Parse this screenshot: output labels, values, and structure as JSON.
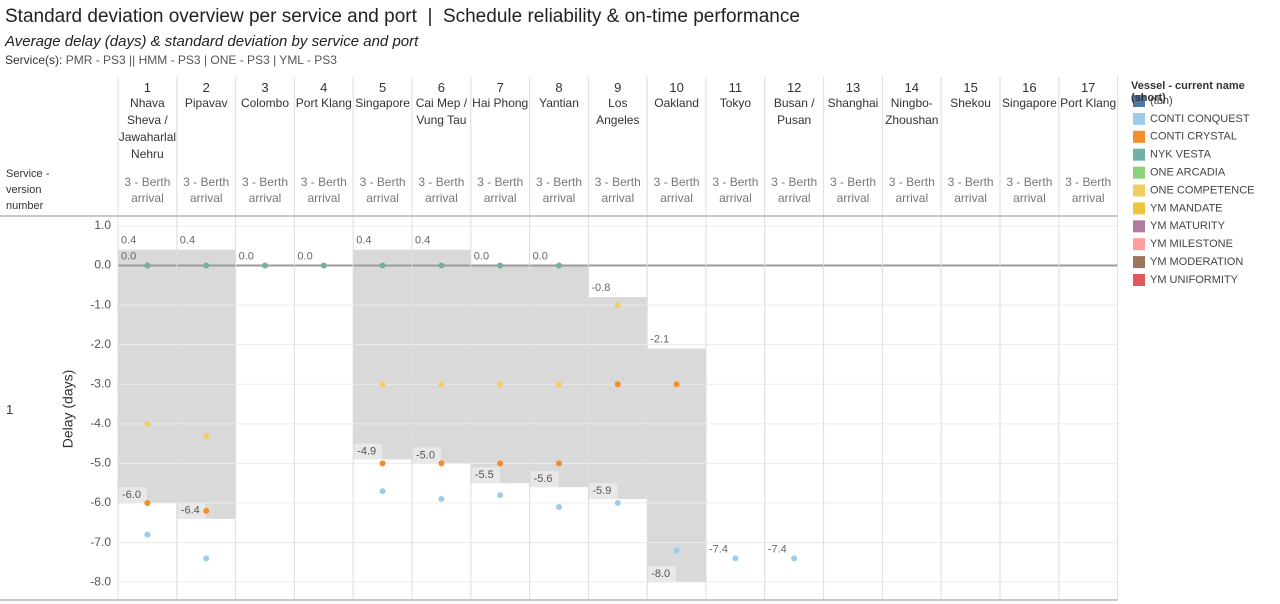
{
  "chart_data": {
    "type": "band",
    "title": "Standard deviation overview per service and port  |  Schedule reliability & on-time performance",
    "subtitle": "Average delay (days) & standard deviation by service and port",
    "services_label": "Service(s):",
    "services": "PMR - PS3 || HMM - PS3 | ONE - PS3 | YML - PS3",
    "row_header": "Service - version number",
    "rows": [
      1
    ],
    "column_numbers": [
      1,
      2,
      3,
      4,
      5,
      6,
      7,
      8,
      9,
      10,
      11,
      12,
      13,
      14,
      15,
      16,
      17
    ],
    "categories": [
      "Nhava Sheva / Jawaharlal Nehru",
      "Pipavav",
      "Colombo",
      "Port Klang",
      "Singapore",
      "Cai Mep / Vung Tau",
      "Hai Phong",
      "Yantian",
      "Los Angeles",
      "Oakland",
      "Tokyo",
      "Busan / Pusan",
      "Shanghai",
      "Ningbo-Zhoushan",
      "Shekou",
      "Singapore",
      "Port Klang"
    ],
    "column_events": [
      "3 - Berth arrival",
      "3 - Berth arrival",
      "3 - Berth arrival",
      "3 - Berth arrival",
      "3 - Berth arrival",
      "3 - Berth arrival",
      "3 - Berth arrival",
      "3 - Berth arrival",
      "3 - Berth arrival",
      "3 - Berth arrival",
      "3 - Berth arrival",
      "3 - Berth arrival",
      "3 - Berth arrival",
      "3 - Berth arrival",
      "3 - Berth arrival",
      "3 - Berth arrival",
      "3 - Berth arrival"
    ],
    "y_label": "Delay (days)",
    "ylim": [
      -8.4,
      1.2
    ],
    "yticks": [
      {
        "value": 1,
        "label": "1.0"
      },
      {
        "value": 0,
        "label": "0.0"
      },
      {
        "value": -1,
        "label": "-1.0"
      },
      {
        "value": -2,
        "label": "-2.0"
      },
      {
        "value": -3,
        "label": "-3.0"
      },
      {
        "value": -4,
        "label": "-4.0"
      },
      {
        "value": -5,
        "label": "-5.0"
      },
      {
        "value": -6,
        "label": "-6.0"
      },
      {
        "value": -7,
        "label": "-7.0"
      },
      {
        "value": -8,
        "label": "-8.0"
      }
    ],
    "grid": true,
    "band_color": "#d9d9d9",
    "band_upper": {
      "values": [
        0.4,
        0.4,
        0,
        0,
        0.4,
        0.4,
        0,
        0,
        -0.8,
        -2.1,
        -7.4,
        -7.4,
        null,
        null,
        null,
        null,
        null
      ],
      "value_labels": [
        "0.4",
        "0.4",
        "0.0",
        "0.0",
        "0.4",
        "0.4",
        "0.0",
        "0.0",
        "-0.8",
        "-2.1",
        "-7.4",
        "-7.4",
        null,
        null,
        null,
        null,
        null
      ]
    },
    "band_lower": {
      "values": [
        -6,
        -6.4,
        null,
        null,
        -4.9,
        -5,
        -5.5,
        -5.6,
        -5.9,
        -8,
        null,
        null,
        null,
        null,
        null,
        null,
        null
      ],
      "value_labels": [
        "-6.0",
        "-6.4",
        null,
        null,
        "-4.9",
        "-5.0",
        "-5.5",
        "-5.6",
        "-5.9",
        "-8.0",
        null,
        null,
        null,
        null,
        null,
        null,
        null
      ]
    },
    "reference": {
      "values": [
        0,
        null,
        null,
        null,
        null,
        null,
        null,
        null,
        null,
        null,
        null,
        null,
        null,
        null,
        null,
        null,
        null
      ],
      "value_labels": [
        "0.0",
        null,
        null,
        null,
        null,
        null,
        null,
        null,
        null,
        null,
        null,
        null,
        null,
        null,
        null,
        null,
        null
      ]
    },
    "legend_title": "Vessel - current name (short)",
    "series": [
      {
        "name": "(tbn)",
        "color": "#4e79a7",
        "values": [
          null,
          null,
          null,
          null,
          null,
          null,
          null,
          null,
          null,
          null,
          null,
          null,
          null,
          null,
          null,
          null,
          null
        ]
      },
      {
        "name": "CONTI CONQUEST",
        "color": "#a0cbe8",
        "values": [
          -6.8,
          -7.4,
          null,
          null,
          -5.7,
          -5.9,
          -5.8,
          -6.1,
          -6.0,
          -7.2,
          -7.4,
          -7.4,
          null,
          null,
          null,
          null,
          null
        ]
      },
      {
        "name": "CONTI CRYSTAL",
        "color": "#f28e2b",
        "values": [
          -6.0,
          -6.2,
          null,
          null,
          -5.0,
          -5.0,
          -5.0,
          -5.0,
          -3.0,
          -3.0,
          null,
          null,
          null,
          null,
          null,
          null,
          null
        ]
      },
      {
        "name": "NYK VESTA",
        "color": "#6fb1aa",
        "values": [
          0,
          0,
          0,
          0,
          0,
          0,
          0,
          0,
          null,
          null,
          null,
          null,
          null,
          null,
          null,
          null,
          null
        ]
      },
      {
        "name": "ONE ARCADIA",
        "color": "#8cd17d",
        "values": [
          null,
          null,
          null,
          null,
          null,
          null,
          null,
          null,
          null,
          null,
          null,
          null,
          null,
          null,
          null,
          null,
          null
        ]
      },
      {
        "name": "ONE COMPETENCE",
        "color": "#f1ce63",
        "values": [
          -4.0,
          -4.3,
          null,
          null,
          -3.0,
          -3.0,
          -3.0,
          -3.0,
          -1.0,
          null,
          null,
          null,
          null,
          null,
          null,
          null,
          null
        ]
      },
      {
        "name": "YM MANDATE",
        "color": "#edc43a",
        "values": [
          null,
          null,
          null,
          null,
          null,
          null,
          null,
          null,
          null,
          null,
          null,
          null,
          null,
          null,
          null,
          null,
          null
        ]
      },
      {
        "name": "YM MATURITY",
        "color": "#b07aa1",
        "values": [
          null,
          null,
          null,
          null,
          null,
          null,
          null,
          null,
          null,
          null,
          null,
          null,
          null,
          null,
          null,
          null,
          null
        ]
      },
      {
        "name": "YM MILESTONE",
        "color": "#ff9d9a",
        "values": [
          null,
          null,
          null,
          null,
          null,
          null,
          null,
          null,
          null,
          null,
          null,
          null,
          null,
          null,
          null,
          null,
          null
        ]
      },
      {
        "name": "YM MODERATION",
        "color": "#9c755f",
        "values": [
          null,
          null,
          null,
          null,
          null,
          null,
          null,
          null,
          null,
          null,
          null,
          null,
          null,
          null,
          null,
          null,
          null
        ]
      },
      {
        "name": "YM UNIFORMITY",
        "color": "#e15759",
        "values": [
          null,
          null,
          null,
          null,
          null,
          null,
          null,
          null,
          null,
          null,
          null,
          null,
          null,
          null,
          null,
          null,
          null
        ]
      }
    ]
  }
}
